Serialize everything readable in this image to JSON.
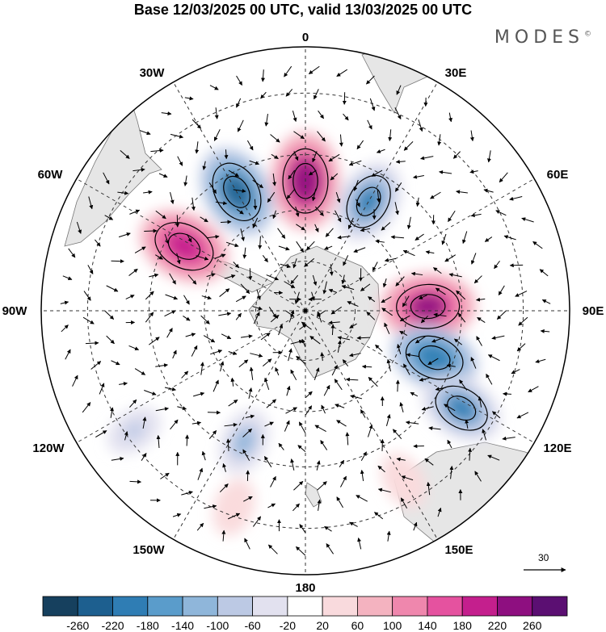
{
  "title": "Base 12/03/2025 00 UTC, valid 13/03/2025 00 UTC",
  "brand": "MODES",
  "brand_mark": "©",
  "longitude_labels": {
    "lon_0": "0",
    "lon_30e": "30E",
    "lon_60e": "60E",
    "lon_90e": "90E",
    "lon_120e": "120E",
    "lon_150e": "150E",
    "lon_180": "180",
    "lon_150w": "150W",
    "lon_120w": "120W",
    "lon_90w": "90W",
    "lon_60w": "60W",
    "lon_30w": "30W"
  },
  "colorbar": {
    "ticks": [
      "-260",
      "-220",
      "-180",
      "-140",
      "-100",
      "-60",
      "-20",
      "20",
      "60",
      "100",
      "140",
      "180",
      "220",
      "260"
    ],
    "colors": [
      "#16405e",
      "#1d5f8f",
      "#2f7db4",
      "#5a9ccb",
      "#8fb6da",
      "#bcc9e4",
      "#e2e1ef",
      "#ffffff",
      "#f9dadd",
      "#f4b3c0",
      "#ef87ad",
      "#e5529f",
      "#c41f8d",
      "#8e0f80",
      "#5b0f72"
    ]
  },
  "vector_reference": {
    "value": "30"
  },
  "anomaly_centers": [
    {
      "sign": "positive",
      "lon": 0,
      "lat": -52,
      "value": 240
    },
    {
      "sign": "negative",
      "lon": 30,
      "lat": -53,
      "value": -180
    },
    {
      "sign": "negative",
      "lon": -30,
      "lat": -50,
      "value": -220
    },
    {
      "sign": "positive",
      "lon": -62,
      "lat": -50,
      "value": 220
    },
    {
      "sign": "positive",
      "lon": 88,
      "lat": -54,
      "value": 230
    },
    {
      "sign": "negative",
      "lon": 110,
      "lat": -50,
      "value": -200
    },
    {
      "sign": "negative",
      "lon": 122,
      "lat": -38,
      "value": -180
    },
    {
      "sign": "negative",
      "lon": -155,
      "lat": -48,
      "value": -100
    },
    {
      "sign": "negative",
      "lon": -125,
      "lat": -32,
      "value": -60
    },
    {
      "sign": "positive",
      "lon": -160,
      "lat": -32,
      "value": 60
    },
    {
      "sign": "positive",
      "lon": 150,
      "lat": -35,
      "value": 60
    }
  ]
}
